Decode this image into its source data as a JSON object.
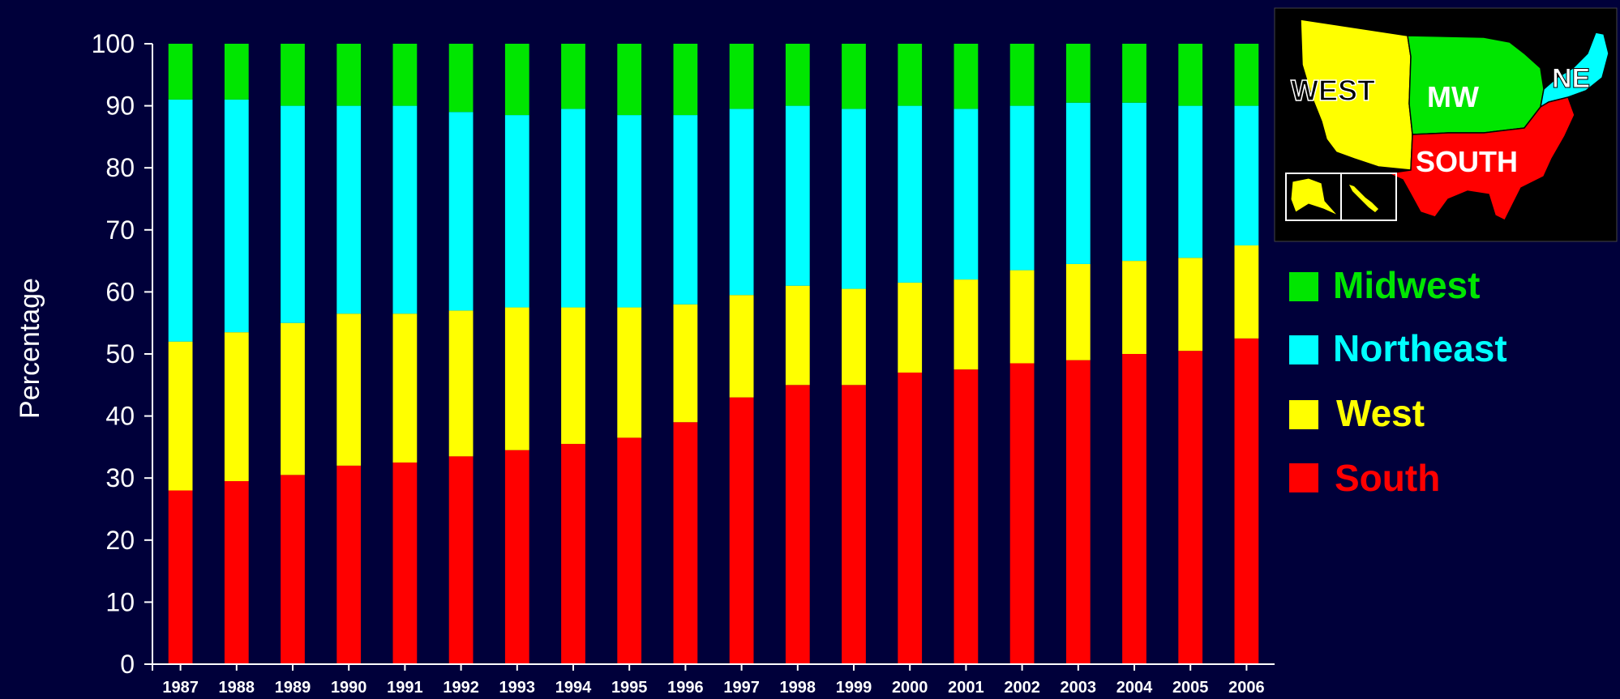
{
  "chart_data": {
    "type": "bar",
    "stacked": true,
    "percent_stacked": true,
    "ylabel": "Percentage",
    "xlabel": "",
    "ylim": [
      0,
      100
    ],
    "yticks": [
      0,
      10,
      20,
      30,
      40,
      50,
      60,
      70,
      80,
      90,
      100
    ],
    "grid": false,
    "legend_position": "right",
    "categories": [
      "1987",
      "1988",
      "1989",
      "1990",
      "1991",
      "1992",
      "1993",
      "1994",
      "1995",
      "1996",
      "1997",
      "1998",
      "1999",
      "2000",
      "2001",
      "2002",
      "2003",
      "2004",
      "2005",
      "2006"
    ],
    "series": [
      {
        "name": "South",
        "color": "#ff0000",
        "values": [
          28.0,
          29.5,
          30.5,
          32.0,
          32.5,
          33.5,
          34.5,
          35.5,
          36.5,
          39.0,
          43.0,
          45.0,
          45.0,
          47.0,
          47.5,
          48.5,
          49.0,
          50.0,
          50.5,
          52.5
        ]
      },
      {
        "name": "West",
        "color": "#ffff00",
        "values": [
          24.0,
          24.0,
          24.5,
          24.5,
          24.0,
          23.5,
          23.0,
          22.0,
          21.0,
          19.0,
          16.5,
          16.0,
          15.5,
          14.5,
          14.5,
          15.0,
          15.5,
          15.0,
          15.0,
          15.0
        ]
      },
      {
        "name": "Northeast",
        "color": "#00ffff",
        "values": [
          39.0,
          37.5,
          35.0,
          33.5,
          33.5,
          32.0,
          31.0,
          32.0,
          31.0,
          30.5,
          30.0,
          29.0,
          29.0,
          28.5,
          27.5,
          26.5,
          26.0,
          25.5,
          24.5,
          22.5
        ]
      },
      {
        "name": "Midwest",
        "color": "#00e600",
        "values": [
          9.0,
          9.0,
          10.0,
          10.0,
          10.0,
          11.0,
          11.5,
          10.5,
          11.5,
          11.5,
          10.5,
          10.0,
          10.5,
          10.0,
          10.5,
          10.0,
          9.5,
          9.5,
          10.0,
          10.0
        ]
      }
    ]
  },
  "legend": [
    {
      "label": "Midwest",
      "color": "#00e600"
    },
    {
      "label": "Northeast",
      "color": "#00ffff"
    },
    {
      "label": "West",
      "color": "#ffff00"
    },
    {
      "label": "South",
      "color": "#ff0000"
    }
  ],
  "map": {
    "labels": [
      "WEST",
      "MW",
      "NE",
      "SOUTH"
    ]
  }
}
